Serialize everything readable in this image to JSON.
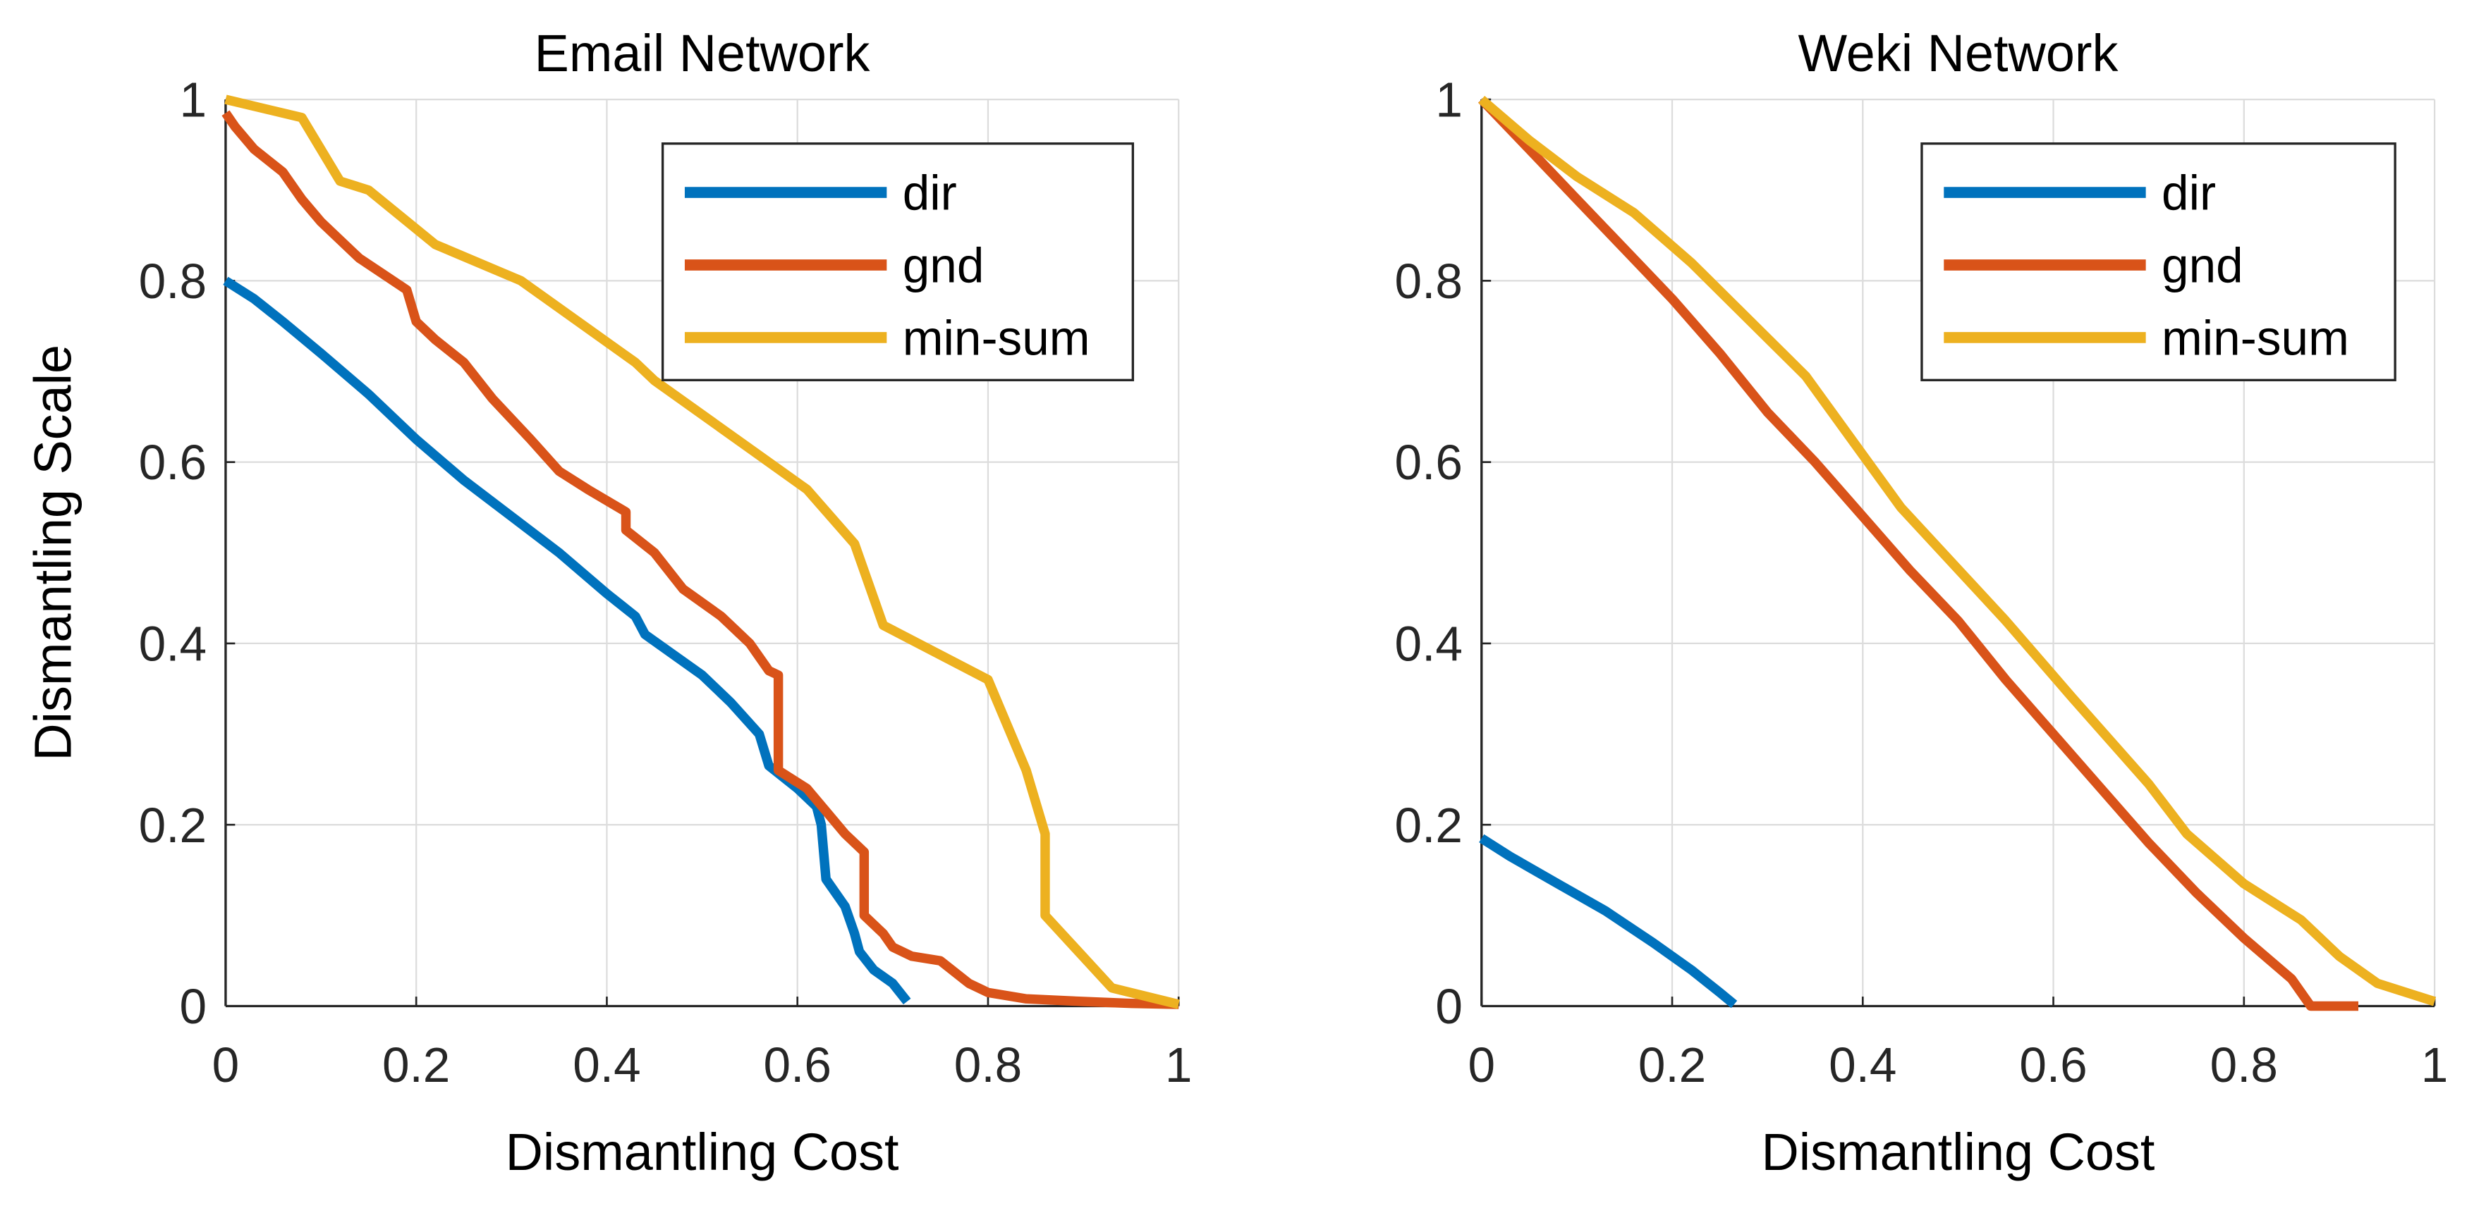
{
  "chart_data": [
    {
      "type": "line",
      "title": "Email Network",
      "xlabel": "Dismantling Cost",
      "ylabel": "Dismantling Scale",
      "xlim": [
        0,
        1
      ],
      "ylim": [
        0,
        1
      ],
      "xticks": [
        "0",
        "0.2",
        "0.4",
        "0.6",
        "0.8",
        "1"
      ],
      "yticks": [
        "0",
        "0.2",
        "0.4",
        "0.6",
        "0.8",
        "1"
      ],
      "grid": true,
      "legend_position": "top-right",
      "series": [
        {
          "name": "dir",
          "color": "#0072BD",
          "points": [
            [
              0,
              0.8
            ],
            [
              0.03,
              0.78
            ],
            [
              0.06,
              0.755
            ],
            [
              0.1,
              0.72
            ],
            [
              0.15,
              0.675
            ],
            [
              0.2,
              0.625
            ],
            [
              0.25,
              0.58
            ],
            [
              0.3,
              0.54
            ],
            [
              0.35,
              0.5
            ],
            [
              0.4,
              0.455
            ],
            [
              0.43,
              0.43
            ],
            [
              0.44,
              0.41
            ],
            [
              0.5,
              0.365
            ],
            [
              0.53,
              0.335
            ],
            [
              0.56,
              0.3
            ],
            [
              0.57,
              0.265
            ],
            [
              0.6,
              0.24
            ],
            [
              0.62,
              0.22
            ],
            [
              0.625,
              0.2
            ],
            [
              0.63,
              0.14
            ],
            [
              0.65,
              0.11
            ],
            [
              0.66,
              0.08
            ],
            [
              0.665,
              0.06
            ],
            [
              0.68,
              0.04
            ],
            [
              0.7,
              0.025
            ],
            [
              0.715,
              0.005
            ]
          ]
        },
        {
          "name": "gnd",
          "color": "#D95319",
          "points": [
            [
              0,
              0.985
            ],
            [
              0.01,
              0.97
            ],
            [
              0.03,
              0.945
            ],
            [
              0.06,
              0.92
            ],
            [
              0.08,
              0.89
            ],
            [
              0.1,
              0.865
            ],
            [
              0.14,
              0.825
            ],
            [
              0.19,
              0.79
            ],
            [
              0.2,
              0.755
            ],
            [
              0.22,
              0.735
            ],
            [
              0.25,
              0.71
            ],
            [
              0.28,
              0.67
            ],
            [
              0.32,
              0.625
            ],
            [
              0.35,
              0.59
            ],
            [
              0.38,
              0.57
            ],
            [
              0.42,
              0.545
            ],
            [
              0.42,
              0.525
            ],
            [
              0.45,
              0.5
            ],
            [
              0.48,
              0.46
            ],
            [
              0.52,
              0.43
            ],
            [
              0.55,
              0.4
            ],
            [
              0.57,
              0.37
            ],
            [
              0.58,
              0.365
            ],
            [
              0.58,
              0.26
            ],
            [
              0.61,
              0.24
            ],
            [
              0.63,
              0.215
            ],
            [
              0.65,
              0.19
            ],
            [
              0.67,
              0.17
            ],
            [
              0.67,
              0.1
            ],
            [
              0.69,
              0.08
            ],
            [
              0.7,
              0.065
            ],
            [
              0.72,
              0.055
            ],
            [
              0.75,
              0.05
            ],
            [
              0.78,
              0.025
            ],
            [
              0.8,
              0.015
            ],
            [
              0.84,
              0.008
            ],
            [
              0.9,
              0.005
            ],
            [
              0.95,
              0.003
            ],
            [
              1,
              0.002
            ]
          ]
        },
        {
          "name": "min-sum",
          "color": "#EDB120",
          "points": [
            [
              0,
              1
            ],
            [
              0.08,
              0.98
            ],
            [
              0.12,
              0.91
            ],
            [
              0.15,
              0.9
            ],
            [
              0.22,
              0.84
            ],
            [
              0.31,
              0.8
            ],
            [
              0.43,
              0.71
            ],
            [
              0.45,
              0.69
            ],
            [
              0.61,
              0.57
            ],
            [
              0.66,
              0.51
            ],
            [
              0.69,
              0.42
            ],
            [
              0.8,
              0.36
            ],
            [
              0.84,
              0.26
            ],
            [
              0.86,
              0.19
            ],
            [
              0.86,
              0.1
            ],
            [
              0.93,
              0.02
            ],
            [
              1,
              0.002
            ]
          ]
        }
      ]
    },
    {
      "type": "line",
      "title": "Weki Network",
      "xlabel": "Dismantling Cost",
      "ylabel": "",
      "xlim": [
        0,
        1
      ],
      "ylim": [
        0,
        1
      ],
      "xticks": [
        "0",
        "0.2",
        "0.4",
        "0.6",
        "0.8",
        "1"
      ],
      "yticks": [
        "0",
        "0.2",
        "0.4",
        "0.6",
        "0.8",
        "1"
      ],
      "grid": true,
      "legend_position": "top-right",
      "series": [
        {
          "name": "dir",
          "color": "#0072BD",
          "points": [
            [
              0,
              0.185
            ],
            [
              0.03,
              0.165
            ],
            [
              0.08,
              0.135
            ],
            [
              0.13,
              0.105
            ],
            [
              0.18,
              0.07
            ],
            [
              0.22,
              0.04
            ],
            [
              0.25,
              0.015
            ],
            [
              0.265,
              0.002
            ]
          ]
        },
        {
          "name": "gnd",
          "color": "#D95319",
          "points": [
            [
              0,
              1
            ],
            [
              0.05,
              0.945
            ],
            [
              0.1,
              0.89
            ],
            [
              0.15,
              0.835
            ],
            [
              0.2,
              0.78
            ],
            [
              0.25,
              0.72
            ],
            [
              0.3,
              0.655
            ],
            [
              0.35,
              0.6
            ],
            [
              0.4,
              0.54
            ],
            [
              0.45,
              0.48
            ],
            [
              0.5,
              0.425
            ],
            [
              0.55,
              0.36
            ],
            [
              0.6,
              0.3
            ],
            [
              0.65,
              0.24
            ],
            [
              0.7,
              0.18
            ],
            [
              0.75,
              0.125
            ],
            [
              0.8,
              0.075
            ],
            [
              0.85,
              0.03
            ],
            [
              0.87,
              0
            ],
            [
              0.92,
              0
            ]
          ]
        },
        {
          "name": "min-sum",
          "color": "#EDB120",
          "points": [
            [
              0,
              1
            ],
            [
              0.05,
              0.955
            ],
            [
              0.1,
              0.915
            ],
            [
              0.16,
              0.875
            ],
            [
              0.22,
              0.82
            ],
            [
              0.34,
              0.695
            ],
            [
              0.44,
              0.55
            ],
            [
              0.55,
              0.425
            ],
            [
              0.62,
              0.34
            ],
            [
              0.7,
              0.245
            ],
            [
              0.74,
              0.19
            ],
            [
              0.8,
              0.135
            ],
            [
              0.86,
              0.095
            ],
            [
              0.9,
              0.055
            ],
            [
              0.94,
              0.025
            ],
            [
              1,
              0.005
            ]
          ]
        }
      ]
    }
  ]
}
